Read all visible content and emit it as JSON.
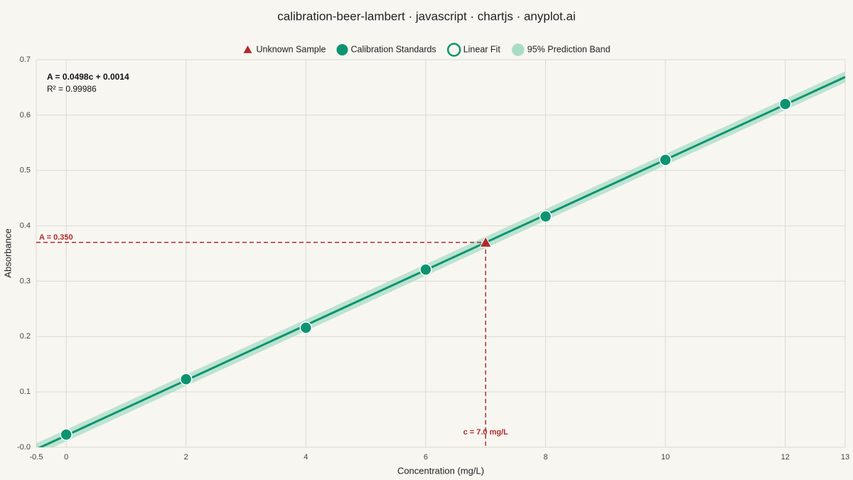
{
  "chart_data": {
    "type": "scatter",
    "title": "calibration-beer-lambert · javascript · chartjs · anyplot.ai",
    "xlabel": "Concentration (mg/L)",
    "ylabel": "Absorbance",
    "xlim": [
      -0.5,
      13
    ],
    "xticks": [
      -0.5,
      0,
      2,
      4,
      6,
      8,
      10,
      12,
      13
    ],
    "ylim": [
      -0.02,
      0.68
    ],
    "yticks": [
      {
        "value": -0.02,
        "label": "-0.0"
      },
      {
        "value": 0.08,
        "label": "0.1"
      },
      {
        "value": 0.18,
        "label": "0.2"
      },
      {
        "value": 0.28,
        "label": "0.3"
      },
      {
        "value": 0.38,
        "label": "0.4"
      },
      {
        "value": 0.48,
        "label": "0.5"
      },
      {
        "value": 0.58,
        "label": "0.6"
      },
      {
        "value": 0.68,
        "label": "0.7"
      }
    ],
    "grid": true,
    "series": [
      {
        "name": "Unknown Sample",
        "color": "#b02a2a",
        "marker": "triangle",
        "x": [
          7.0
        ],
        "values": [
          0.35
        ]
      },
      {
        "name": "Calibration Standards",
        "color": "#0c9470",
        "marker": "circle",
        "x": [
          0,
          2,
          4,
          6,
          8,
          10,
          12
        ],
        "values": [
          0.003,
          0.103,
          0.196,
          0.301,
          0.397,
          0.499,
          0.6
        ]
      },
      {
        "name": "Linear Fit",
        "color": "#0c9470",
        "marker": "line",
        "x": [
          -0.5,
          13
        ],
        "values": [
          -0.0235,
          0.6488
        ]
      },
      {
        "name": "95% Prediction Band",
        "color": "#a9dcc5",
        "marker": "band",
        "x": [
          -0.5,
          13
        ],
        "values": [
          -0.013,
          0.659
        ],
        "lower": [
          -0.034,
          0.639
        ]
      }
    ],
    "annotations": {
      "equation": "A = 0.0498c + 0.0014",
      "r_squared": "R² = 0.99986",
      "absorbance_label": "A = 0.350",
      "concentration_label": "c = 7.0 mg/L"
    }
  }
}
